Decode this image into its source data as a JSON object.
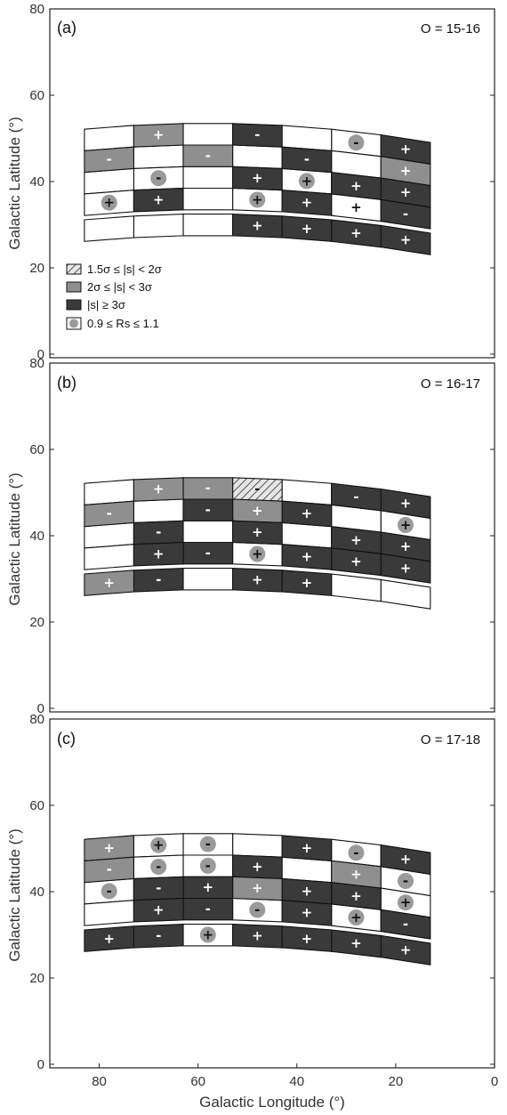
{
  "colors": {
    "sig_1_5": "#dcdcdc",
    "sig_2": "#8f8f8f",
    "sig_3": "#3a3a3a",
    "rs_circle": "#9a9a9a",
    "white": "#ffffff"
  },
  "axes": {
    "xlabel": "Galactic Longitude (°)",
    "ylabel": "Galactic Latitude (°)",
    "xticks": [
      "80",
      "60",
      "40",
      "20",
      "0"
    ],
    "yticks": [
      "0",
      "20",
      "40",
      "60",
      "80"
    ]
  },
  "legend": {
    "items": [
      {
        "key": "sig_1_5",
        "label": "1.5σ  ≤ |s| < 2σ"
      },
      {
        "key": "sig_2",
        "label": "2σ ≤ |s| < 3σ"
      },
      {
        "key": "sig_3",
        "label": "|s| ≥ 3σ"
      },
      {
        "key": "rs",
        "label": "0.9 ≤ Rs ≤ 1.1"
      }
    ]
  },
  "chart_data": [
    {
      "type": "heatmap",
      "panel_label": "(a)",
      "order_label": "O = 15-16",
      "xlim": [
        90,
        0
      ],
      "ylim": [
        0,
        80
      ],
      "columns_lon": [
        78,
        68,
        58,
        48,
        38,
        28,
        18
      ],
      "rows_lat": [
        30,
        36,
        41,
        46,
        51
      ],
      "cells": [
        {
          "col": 0,
          "row": 0,
          "level": "none",
          "sign": "",
          "rs": false
        },
        {
          "col": 0,
          "row": 1,
          "level": "none",
          "sign": "+",
          "rs": true
        },
        {
          "col": 0,
          "row": 2,
          "level": "none",
          "sign": "",
          "rs": false
        },
        {
          "col": 0,
          "row": 3,
          "level": "sig_2",
          "sign": "-",
          "rs": false
        },
        {
          "col": 0,
          "row": 4,
          "level": "none",
          "sign": "",
          "rs": false
        },
        {
          "col": 1,
          "row": 0,
          "level": "none",
          "sign": "",
          "rs": false
        },
        {
          "col": 1,
          "row": 1,
          "level": "sig_3",
          "sign": "+",
          "rs": false
        },
        {
          "col": 1,
          "row": 2,
          "level": "none",
          "sign": "-",
          "rs": true
        },
        {
          "col": 1,
          "row": 3,
          "level": "none",
          "sign": "",
          "rs": false
        },
        {
          "col": 1,
          "row": 4,
          "level": "sig_2",
          "sign": "+",
          "rs": false
        },
        {
          "col": 2,
          "row": 0,
          "level": "none",
          "sign": "",
          "rs": false
        },
        {
          "col": 2,
          "row": 1,
          "level": "none",
          "sign": "",
          "rs": false
        },
        {
          "col": 2,
          "row": 2,
          "level": "none",
          "sign": "",
          "rs": false
        },
        {
          "col": 2,
          "row": 3,
          "level": "sig_2",
          "sign": "-",
          "rs": false
        },
        {
          "col": 2,
          "row": 4,
          "level": "none",
          "sign": "",
          "rs": false
        },
        {
          "col": 3,
          "row": 0,
          "level": "sig_3",
          "sign": "+",
          "rs": false
        },
        {
          "col": 3,
          "row": 1,
          "level": "none",
          "sign": "+",
          "rs": true
        },
        {
          "col": 3,
          "row": 2,
          "level": "sig_3",
          "sign": "+",
          "rs": false
        },
        {
          "col": 3,
          "row": 3,
          "level": "none",
          "sign": "",
          "rs": false
        },
        {
          "col": 3,
          "row": 4,
          "level": "sig_3",
          "sign": "-",
          "rs": false
        },
        {
          "col": 4,
          "row": 0,
          "level": "sig_3",
          "sign": "+",
          "rs": false
        },
        {
          "col": 4,
          "row": 1,
          "level": "sig_3",
          "sign": "+",
          "rs": false
        },
        {
          "col": 4,
          "row": 2,
          "level": "none",
          "sign": "+",
          "rs": true
        },
        {
          "col": 4,
          "row": 3,
          "level": "sig_3",
          "sign": "-",
          "rs": false
        },
        {
          "col": 4,
          "row": 4,
          "level": "none",
          "sign": "",
          "rs": false
        },
        {
          "col": 5,
          "row": 0,
          "level": "sig_3",
          "sign": "+",
          "rs": false
        },
        {
          "col": 5,
          "row": 1,
          "level": "none",
          "sign": "+",
          "rs": false
        },
        {
          "col": 5,
          "row": 2,
          "level": "sig_3",
          "sign": "+",
          "rs": false
        },
        {
          "col": 5,
          "row": 3,
          "level": "none",
          "sign": "",
          "rs": false
        },
        {
          "col": 5,
          "row": 4,
          "level": "none",
          "sign": "-",
          "rs": true
        },
        {
          "col": 6,
          "row": 0,
          "level": "sig_3",
          "sign": "+",
          "rs": false
        },
        {
          "col": 6,
          "row": 1,
          "level": "sig_3",
          "sign": "-",
          "rs": false
        },
        {
          "col": 6,
          "row": 2,
          "level": "sig_3",
          "sign": "+",
          "rs": false
        },
        {
          "col": 6,
          "row": 3,
          "level": "sig_2",
          "sign": "+",
          "rs": false
        },
        {
          "col": 6,
          "row": 4,
          "level": "sig_3",
          "sign": "+",
          "rs": false
        }
      ]
    },
    {
      "type": "heatmap",
      "panel_label": "(b)",
      "order_label": "O = 16-17",
      "xlim": [
        90,
        0
      ],
      "ylim": [
        0,
        80
      ],
      "columns_lon": [
        78,
        68,
        58,
        48,
        38,
        28,
        18
      ],
      "rows_lat": [
        30,
        36,
        41,
        46,
        51
      ],
      "cells": [
        {
          "col": 0,
          "row": 0,
          "level": "sig_2",
          "sign": "+",
          "rs": false
        },
        {
          "col": 0,
          "row": 1,
          "level": "none",
          "sign": "",
          "rs": false
        },
        {
          "col": 0,
          "row": 2,
          "level": "none",
          "sign": "",
          "rs": false
        },
        {
          "col": 0,
          "row": 3,
          "level": "sig_2",
          "sign": "-",
          "rs": false
        },
        {
          "col": 0,
          "row": 4,
          "level": "none",
          "sign": "",
          "rs": false
        },
        {
          "col": 1,
          "row": 0,
          "level": "sig_3",
          "sign": "-",
          "rs": false
        },
        {
          "col": 1,
          "row": 1,
          "level": "sig_3",
          "sign": "+",
          "rs": false
        },
        {
          "col": 1,
          "row": 2,
          "level": "sig_3",
          "sign": "-",
          "rs": false
        },
        {
          "col": 1,
          "row": 3,
          "level": "none",
          "sign": "",
          "rs": false
        },
        {
          "col": 1,
          "row": 4,
          "level": "sig_2",
          "sign": "+",
          "rs": false
        },
        {
          "col": 2,
          "row": 0,
          "level": "none",
          "sign": "",
          "rs": false
        },
        {
          "col": 2,
          "row": 1,
          "level": "sig_3",
          "sign": "-",
          "rs": false
        },
        {
          "col": 2,
          "row": 2,
          "level": "none",
          "sign": "",
          "rs": false
        },
        {
          "col": 2,
          "row": 3,
          "level": "sig_3",
          "sign": "-",
          "rs": false
        },
        {
          "col": 2,
          "row": 4,
          "level": "sig_2",
          "sign": "-",
          "rs": false
        },
        {
          "col": 3,
          "row": 0,
          "level": "sig_3",
          "sign": "+",
          "rs": false
        },
        {
          "col": 3,
          "row": 1,
          "level": "none",
          "sign": "+",
          "rs": true
        },
        {
          "col": 3,
          "row": 2,
          "level": "sig_3",
          "sign": "+",
          "rs": false
        },
        {
          "col": 3,
          "row": 3,
          "level": "sig_2",
          "sign": "+",
          "rs": false
        },
        {
          "col": 3,
          "row": 4,
          "level": "sig_1_5",
          "sign": "-",
          "rs": false
        },
        {
          "col": 4,
          "row": 0,
          "level": "sig_3",
          "sign": "+",
          "rs": false
        },
        {
          "col": 4,
          "row": 1,
          "level": "sig_3",
          "sign": "+",
          "rs": false
        },
        {
          "col": 4,
          "row": 2,
          "level": "none",
          "sign": "",
          "rs": false
        },
        {
          "col": 4,
          "row": 3,
          "level": "sig_3",
          "sign": "+",
          "rs": false
        },
        {
          "col": 4,
          "row": 4,
          "level": "none",
          "sign": "",
          "rs": false
        },
        {
          "col": 5,
          "row": 0,
          "level": "none",
          "sign": "",
          "rs": false
        },
        {
          "col": 5,
          "row": 1,
          "level": "sig_3",
          "sign": "+",
          "rs": false
        },
        {
          "col": 5,
          "row": 2,
          "level": "sig_3",
          "sign": "+",
          "rs": false
        },
        {
          "col": 5,
          "row": 3,
          "level": "none",
          "sign": "",
          "rs": false
        },
        {
          "col": 5,
          "row": 4,
          "level": "sig_3",
          "sign": "-",
          "rs": false
        },
        {
          "col": 6,
          "row": 0,
          "level": "none",
          "sign": "",
          "rs": false
        },
        {
          "col": 6,
          "row": 1,
          "level": "sig_3",
          "sign": "+",
          "rs": false
        },
        {
          "col": 6,
          "row": 2,
          "level": "sig_3",
          "sign": "+",
          "rs": false
        },
        {
          "col": 6,
          "row": 3,
          "level": "none",
          "sign": "+",
          "rs": true
        },
        {
          "col": 6,
          "row": 4,
          "level": "sig_3",
          "sign": "+",
          "rs": false
        }
      ]
    },
    {
      "type": "heatmap",
      "panel_label": "(c)",
      "order_label": "O = 17-18",
      "xlim": [
        90,
        0
      ],
      "ylim": [
        0,
        80
      ],
      "columns_lon": [
        78,
        68,
        58,
        48,
        38,
        28,
        18
      ],
      "rows_lat": [
        30,
        36,
        41,
        46,
        51
      ],
      "cells": [
        {
          "col": 0,
          "row": 0,
          "level": "sig_3",
          "sign": "+",
          "rs": false
        },
        {
          "col": 0,
          "row": 1,
          "level": "none",
          "sign": "",
          "rs": false
        },
        {
          "col": 0,
          "row": 2,
          "level": "none",
          "sign": "-",
          "rs": true
        },
        {
          "col": 0,
          "row": 3,
          "level": "sig_2",
          "sign": "-",
          "rs": false
        },
        {
          "col": 0,
          "row": 4,
          "level": "sig_2",
          "sign": "+",
          "rs": false
        },
        {
          "col": 1,
          "row": 0,
          "level": "sig_3",
          "sign": "-",
          "rs": false
        },
        {
          "col": 1,
          "row": 1,
          "level": "sig_3",
          "sign": "+",
          "rs": false
        },
        {
          "col": 1,
          "row": 2,
          "level": "sig_3",
          "sign": "-",
          "rs": false
        },
        {
          "col": 1,
          "row": 3,
          "level": "none",
          "sign": "-",
          "rs": true
        },
        {
          "col": 1,
          "row": 4,
          "level": "none",
          "sign": "+",
          "rs": true
        },
        {
          "col": 2,
          "row": 0,
          "level": "none",
          "sign": "+",
          "rs": true
        },
        {
          "col": 2,
          "row": 1,
          "level": "sig_3",
          "sign": "-",
          "rs": false
        },
        {
          "col": 2,
          "row": 2,
          "level": "sig_3",
          "sign": "+",
          "rs": false
        },
        {
          "col": 2,
          "row": 3,
          "level": "none",
          "sign": "-",
          "rs": true
        },
        {
          "col": 2,
          "row": 4,
          "level": "none",
          "sign": "-",
          "rs": true
        },
        {
          "col": 3,
          "row": 0,
          "level": "sig_3",
          "sign": "+",
          "rs": false
        },
        {
          "col": 3,
          "row": 1,
          "level": "none",
          "sign": "-",
          "rs": true
        },
        {
          "col": 3,
          "row": 2,
          "level": "sig_2",
          "sign": "+",
          "rs": false
        },
        {
          "col": 3,
          "row": 3,
          "level": "sig_3",
          "sign": "+",
          "rs": false
        },
        {
          "col": 3,
          "row": 4,
          "level": "none",
          "sign": "",
          "rs": false
        },
        {
          "col": 4,
          "row": 0,
          "level": "sig_3",
          "sign": "+",
          "rs": false
        },
        {
          "col": 4,
          "row": 1,
          "level": "sig_3",
          "sign": "+",
          "rs": false
        },
        {
          "col": 4,
          "row": 2,
          "level": "sig_3",
          "sign": "+",
          "rs": false
        },
        {
          "col": 4,
          "row": 3,
          "level": "none",
          "sign": "",
          "rs": false
        },
        {
          "col": 4,
          "row": 4,
          "level": "sig_3",
          "sign": "+",
          "rs": false
        },
        {
          "col": 5,
          "row": 0,
          "level": "sig_3",
          "sign": "+",
          "rs": false
        },
        {
          "col": 5,
          "row": 1,
          "level": "none",
          "sign": "+",
          "rs": true
        },
        {
          "col": 5,
          "row": 2,
          "level": "sig_3",
          "sign": "+",
          "rs": false
        },
        {
          "col": 5,
          "row": 3,
          "level": "sig_2",
          "sign": "+",
          "rs": false
        },
        {
          "col": 5,
          "row": 4,
          "level": "none",
          "sign": "-",
          "rs": true
        },
        {
          "col": 6,
          "row": 0,
          "level": "sig_3",
          "sign": "+",
          "rs": false
        },
        {
          "col": 6,
          "row": 1,
          "level": "sig_3",
          "sign": "-",
          "rs": false
        },
        {
          "col": 6,
          "row": 2,
          "level": "none",
          "sign": "+",
          "rs": true
        },
        {
          "col": 6,
          "row": 3,
          "level": "none",
          "sign": "-",
          "rs": true
        },
        {
          "col": 6,
          "row": 4,
          "level": "sig_3",
          "sign": "+",
          "rs": false
        }
      ]
    }
  ]
}
